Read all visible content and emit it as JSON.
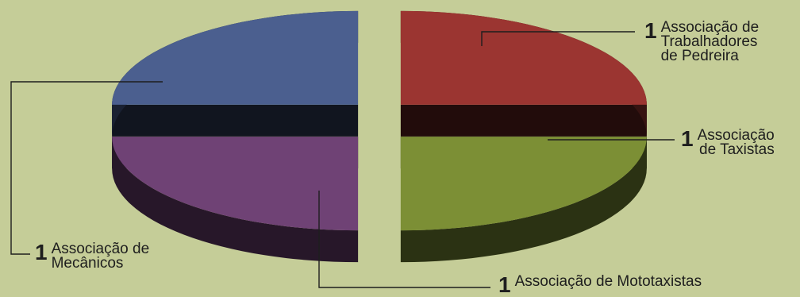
{
  "chart_data": {
    "type": "pie",
    "title": "",
    "slices": [
      {
        "number": "1",
        "label": "Associação de\nTrabalhadores\nde Pedreira",
        "value": 1,
        "color": "#9b3531"
      },
      {
        "number": "1",
        "label": "Associação\nde Taxistas",
        "value": 1,
        "color": "#7c8f35"
      },
      {
        "number": "1",
        "label": "Associação de Mototaxistas",
        "value": 1,
        "color": "#6f4275"
      },
      {
        "number": "1",
        "label": "Associação de\nMecânicos",
        "value": 1,
        "color": "#4b5f8f"
      }
    ]
  }
}
